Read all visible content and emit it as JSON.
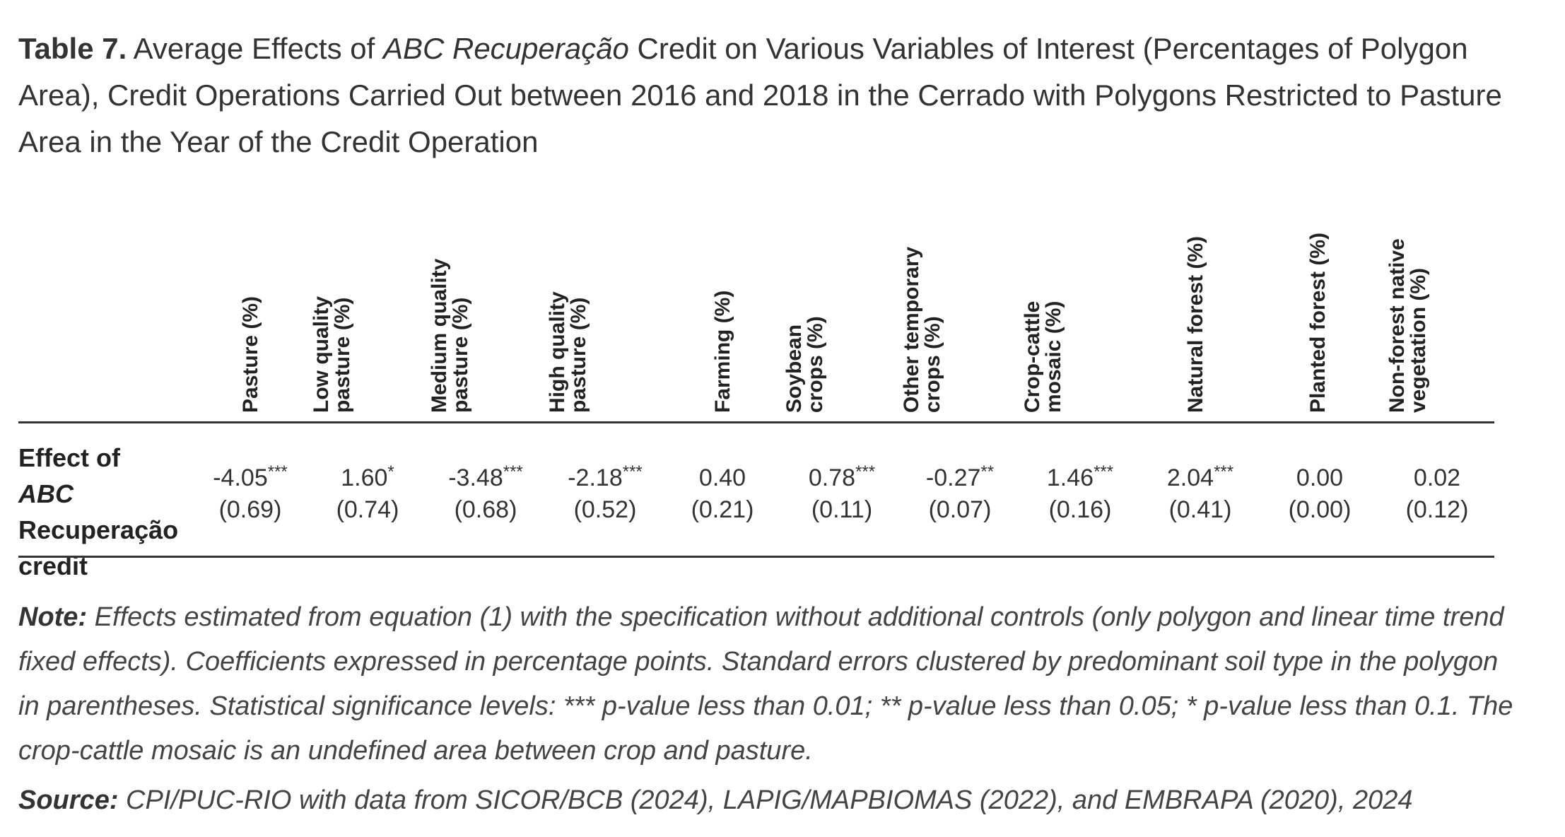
{
  "title": {
    "label": "Table 7.",
    "part1": " Average Effects of ",
    "italic": "ABC Recuperação",
    "part2": " Credit on Various Variables of Interest (Percentages of Polygon Area), Credit Operations Carried Out between 2016 and 2018 in the Cerrado with Polygons Restricted to Pasture Area in the Year of the Credit Operation"
  },
  "columns": [
    {
      "line1": "Pasture (%)",
      "line2": "",
      "coef": "-4.05",
      "stars": "***",
      "se": "(0.69)"
    },
    {
      "line1": "Low quality",
      "line2": "pasture (%)",
      "coef": "1.60",
      "stars": "*",
      "se": "(0.74)"
    },
    {
      "line1": "Medium quality",
      "line2": "pasture (%)",
      "coef": "-3.48",
      "stars": "***",
      "se": "(0.68)"
    },
    {
      "line1": "High quality",
      "line2": "pasture (%)",
      "coef": "-2.18",
      "stars": "***",
      "se": "(0.52)"
    },
    {
      "line1": "Farming (%)",
      "line2": "",
      "coef": "0.40",
      "stars": "",
      "se": "(0.21)"
    },
    {
      "line1": "Soybean",
      "line2": "crops (%)",
      "coef": "0.78",
      "stars": "***",
      "se": "(0.11)"
    },
    {
      "line1": "Other temporary",
      "line2": "crops (%)",
      "coef": "-0.27",
      "stars": "**",
      "se": "(0.07)"
    },
    {
      "line1": "Crop-cattle",
      "line2": "mosaic (%)",
      "coef": "1.46",
      "stars": "***",
      "se": "(0.16)"
    },
    {
      "line1": "Natural forest (%)",
      "line2": "",
      "coef": "2.04",
      "stars": "***",
      "se": "(0.41)"
    },
    {
      "line1": "Planted forest (%)",
      "line2": "",
      "coef": "0.00",
      "stars": "",
      "se": "(0.00)"
    },
    {
      "line1": "Non-forest native",
      "line2": "vegetation (%)",
      "coef": "0.02",
      "stars": "",
      "se": "(0.12)"
    }
  ],
  "row": {
    "part1": "Effect of ",
    "italic": "ABC",
    "part2": "Recuperação",
    "part3": "credit"
  },
  "note": {
    "label": "Note:",
    "text": " Effects estimated from equation (1) with the specification without additional controls (only polygon and linear time trend fixed effects). Coefficients expressed in percentage points. Standard errors clustered by predominant soil type in the polygon in parentheses. Statistical significance levels: *** p-value less than 0.01; ** p-value less than 0.05; * p-value less than 0.1. The crop-cattle mosaic is an undefined area between crop and pasture."
  },
  "source": {
    "label": "Source:",
    "text": " CPI/PUC-RIO with data from SICOR/BCB (2024), LAPIG/MAPBIOMAS (2022), and EMBRAPA (2020), 2024"
  }
}
